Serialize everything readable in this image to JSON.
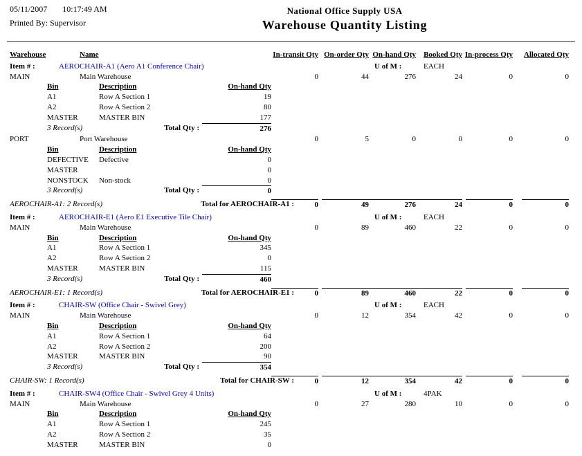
{
  "header": {
    "date": "05/11/2007",
    "time": "10:17:49 AM",
    "printed_by_label": "Printed By:",
    "printed_by": "Supervisor",
    "company": "National Office Supply USA",
    "title": "Warehouse Quantity Listing"
  },
  "columns": {
    "warehouse": "Warehouse",
    "name": "Name",
    "qty": [
      "In-transit Qty",
      "On-order Qty",
      "On-hand Qty",
      "Booked Qty",
      "In-process Qty",
      "Allocated Qty"
    ]
  },
  "labels": {
    "item": "Item # :",
    "uofm": "U of M :",
    "bin": "Bin",
    "desc": "Description",
    "on_hand": "On-hand Qty",
    "total_qty": "Total Qty :"
  },
  "items": [
    {
      "item_no": "AEROCHAIR-A1 (Aero A1 Conference Chair)",
      "uofm": "EACH",
      "warehouses": [
        {
          "code": "MAIN",
          "name": "Main Warehouse",
          "qtys": [
            "0",
            "44",
            "276",
            "24",
            "0",
            "0"
          ],
          "bins": [
            {
              "bin": "A1",
              "desc": "Row A Section 1",
              "qty": "19"
            },
            {
              "bin": "A2",
              "desc": "Row A Section 2",
              "qty": "80"
            },
            {
              "bin": "MASTER",
              "desc": "MASTER BIN",
              "qty": "177"
            }
          ],
          "records": "3 Record(s)",
          "total_qty": "276"
        },
        {
          "code": "PORT",
          "name": "Port Warehouse",
          "qtys": [
            "0",
            "5",
            "0",
            "0",
            "0",
            "0"
          ],
          "bins": [
            {
              "bin": "DEFECTIVE",
              "desc": "Defective",
              "qty": "0"
            },
            {
              "bin": "MASTER",
              "desc": "",
              "qty": "0"
            },
            {
              "bin": "NONSTOCK",
              "desc": "Non-stock",
              "qty": "0"
            }
          ],
          "records": "3 Record(s)",
          "total_qty": "0"
        }
      ],
      "summary": {
        "records": "AEROCHAIR-A1: 2 Record(s)",
        "total_label": "Total for AEROCHAIR-A1 :",
        "totals": [
          "0",
          "49",
          "276",
          "24",
          "0",
          "0"
        ]
      }
    },
    {
      "item_no": "AEROCHAIR-E1 (Aero E1 Executive Tile Chair)",
      "uofm": "EACH",
      "warehouses": [
        {
          "code": "MAIN",
          "name": "Main Warehouse",
          "qtys": [
            "0",
            "89",
            "460",
            "22",
            "0",
            "0"
          ],
          "bins": [
            {
              "bin": "A1",
              "desc": "Row A Section 1",
              "qty": "345"
            },
            {
              "bin": "A2",
              "desc": "Row A Section 2",
              "qty": "0"
            },
            {
              "bin": "MASTER",
              "desc": "MASTER BIN",
              "qty": "115"
            }
          ],
          "records": "3 Record(s)",
          "total_qty": "460"
        }
      ],
      "summary": {
        "records": "AEROCHAIR-E1: 1 Record(s)",
        "total_label": "Total for AEROCHAIR-E1 :",
        "totals": [
          "0",
          "89",
          "460",
          "22",
          "0",
          "0"
        ]
      }
    },
    {
      "item_no": "CHAIR-SW (Office Chair - Swivel Grey)",
      "uofm": "EACH",
      "warehouses": [
        {
          "code": "MAIN",
          "name": "Main Warehouse",
          "qtys": [
            "0",
            "12",
            "354",
            "42",
            "0",
            "0"
          ],
          "bins": [
            {
              "bin": "A1",
              "desc": "Row A Section 1",
              "qty": "64"
            },
            {
              "bin": "A2",
              "desc": "Row A Section 2",
              "qty": "200"
            },
            {
              "bin": "MASTER",
              "desc": "MASTER BIN",
              "qty": "90"
            }
          ],
          "records": "3 Record(s)",
          "total_qty": "354"
        }
      ],
      "summary": {
        "records": "CHAIR-SW: 1 Record(s)",
        "total_label": "Total for CHAIR-SW :",
        "totals": [
          "0",
          "12",
          "354",
          "42",
          "0",
          "0"
        ]
      }
    },
    {
      "item_no": "CHAIR-SW4 (Office Chair - Swivel Grey 4 Units)",
      "uofm": "4PAK",
      "warehouses": [
        {
          "code": "MAIN",
          "name": "Main Warehouse",
          "qtys": [
            "0",
            "27",
            "280",
            "10",
            "0",
            "0"
          ],
          "bins": [
            {
              "bin": "A1",
              "desc": "Row A Section 1",
              "qty": "245"
            },
            {
              "bin": "A2",
              "desc": "Row A Section 2",
              "qty": "35"
            },
            {
              "bin": "MASTER",
              "desc": "MASTER BIN",
              "qty": "0"
            }
          ]
        }
      ]
    }
  ]
}
